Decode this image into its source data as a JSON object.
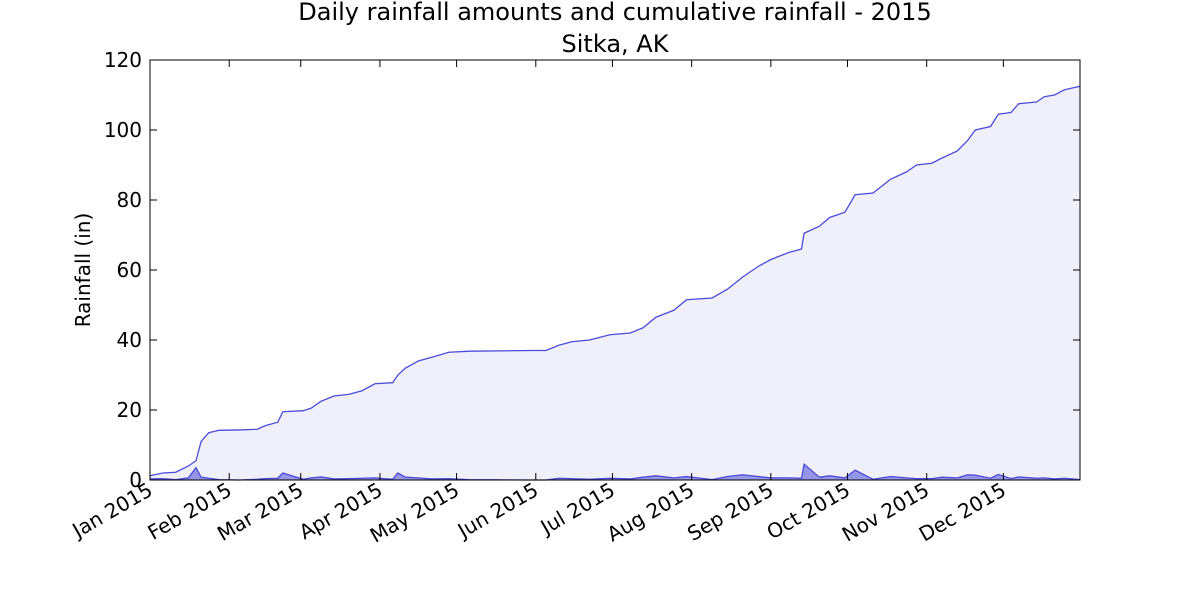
{
  "chart_data": {
    "type": "area",
    "title": "Daily rainfall amounts and cumulative rainfall - 2015",
    "subtitle": "Sitka, AK",
    "ylabel": "Rainfall (in)",
    "x": [
      0,
      5,
      10,
      15,
      18,
      20,
      23,
      27,
      35,
      42,
      45,
      50,
      52,
      60,
      63,
      67,
      72,
      78,
      83,
      88,
      95,
      97,
      100,
      105,
      110,
      117,
      125,
      150,
      155,
      160,
      165,
      172,
      180,
      188,
      193,
      198,
      205,
      210,
      220,
      226,
      232,
      238,
      243,
      250,
      255,
      256,
      262,
      266,
      272,
      276,
      283,
      290,
      296,
      300,
      306,
      310,
      316,
      320,
      323,
      329,
      332,
      337,
      340,
      347,
      350,
      354,
      358,
      364
    ],
    "series": [
      {
        "color": "#4b4bd8",
        "fill": "#f0f0fb",
        "values": [
          1.2,
          2,
          2.2,
          4,
          5.5,
          11,
          13.5,
          14.2,
          14.3,
          14.5,
          15.5,
          16.5,
          19.5,
          19.8,
          20.5,
          22.5,
          24,
          24.5,
          25.5,
          27.5,
          27.8,
          30,
          32,
          34,
          35,
          36.5,
          36.8,
          37,
          37,
          38.5,
          39.5,
          40,
          41.5,
          42,
          43.5,
          46.5,
          48.5,
          51.5,
          52,
          54.5,
          58,
          61,
          63,
          65,
          66,
          70.5,
          72.5,
          75,
          76.5,
          81.5,
          82,
          86,
          88,
          90,
          90.5,
          92,
          94,
          97,
          100,
          101,
          104.5,
          105,
          107.5,
          108,
          109.5,
          110,
          111.5,
          112.5
        ]
      },
      {
        "color": "#4b4bd8",
        "fill": "#8080e4",
        "values": [
          0.3,
          0.4,
          0.1,
          0.6,
          3.5,
          0.8,
          0.5,
          0.1,
          0,
          0.2,
          0.4,
          0.5,
          2,
          0.2,
          0.6,
          0.9,
          0.3,
          0.4,
          0.5,
          0.6,
          0.2,
          2,
          0.8,
          0.6,
          0.3,
          0.4,
          0.1,
          0,
          0,
          0.5,
          0.4,
          0.2,
          0.5,
          0.3,
          0.8,
          1.2,
          0.6,
          1,
          0.1,
          1,
          1.5,
          1,
          0.6,
          0.6,
          0.5,
          4.5,
          0.8,
          1.2,
          0.6,
          2.8,
          0.2,
          1,
          0.6,
          0.4,
          0.4,
          0.8,
          0.6,
          1.5,
          1.4,
          0.5,
          1.6,
          0.4,
          0.9,
          0.5,
          0.6,
          0.3,
          0.5,
          0.1
        ]
      }
    ],
    "xlim": [
      0,
      364
    ],
    "xticks": [
      {
        "value": 0,
        "label": "Jan 2015"
      },
      {
        "value": 31,
        "label": "Feb 2015"
      },
      {
        "value": 59,
        "label": "Mar 2015"
      },
      {
        "value": 90,
        "label": "Apr 2015"
      },
      {
        "value": 120,
        "label": "May 2015"
      },
      {
        "value": 151,
        "label": "Jun 2015"
      },
      {
        "value": 181,
        "label": "Jul 2015"
      },
      {
        "value": 212,
        "label": "Aug 2015"
      },
      {
        "value": 243,
        "label": "Sep 2015"
      },
      {
        "value": 273,
        "label": "Oct 2015"
      },
      {
        "value": 304,
        "label": "Nov 2015"
      },
      {
        "value": 334,
        "label": "Dec 2015"
      }
    ],
    "ylim": [
      0,
      120
    ],
    "yticks": [
      0,
      20,
      40,
      60,
      80,
      100,
      120
    ]
  }
}
